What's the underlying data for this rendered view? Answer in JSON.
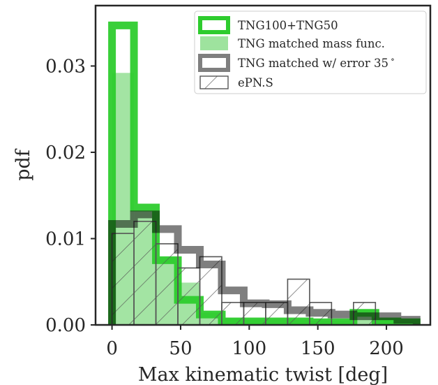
{
  "chart_data": {
    "type": "histogram",
    "xlabel": "Max kinematic twist [deg]",
    "ylabel": "pdf",
    "xlim": [
      -12,
      232
    ],
    "ylim": [
      0,
      0.037
    ],
    "xticks": [
      0,
      50,
      100,
      150,
      200
    ],
    "yticks": [
      0.0,
      0.01,
      0.02,
      0.03
    ],
    "xtick_labels": [
      "0",
      "50",
      "100",
      "150",
      "200"
    ],
    "ytick_labels": [
      "0.00",
      "0.01",
      "0.02",
      "0.03"
    ],
    "grid": false,
    "legend_position": "top-right",
    "series": [
      {
        "name": "TNG100+TNG50",
        "style": "step",
        "color": "#2ecc2e",
        "bin_edges": [
          0,
          16,
          32,
          48,
          64,
          80,
          96,
          112,
          128,
          144,
          160,
          176,
          192,
          208,
          222
        ],
        "values": [
          0.0347,
          0.0136,
          0.0075,
          0.0029,
          0.0012,
          0.0004,
          0.0004,
          0.0004,
          0.0004,
          0.0003,
          0.0003,
          0.0014,
          0.0004,
          0.0003
        ]
      },
      {
        "name": "TNG matched mass func.",
        "style": "filled",
        "color": "#9ee39e",
        "bin_edges": [
          0,
          16,
          32,
          48,
          64,
          80,
          96,
          112,
          128,
          144,
          160,
          176,
          192,
          208,
          222
        ],
        "values": [
          0.0292,
          0.0132,
          0.0078,
          0.0049,
          0.0014,
          0.0008,
          0.0006,
          0.0006,
          0.0006,
          0.0005,
          0.0005,
          0.0018,
          0.0006,
          0.0004
        ]
      },
      {
        "name": "TNG matched w/ error 35$^\\circ$",
        "legend_label": "TNG matched w/ error 35",
        "legend_sup": "∘",
        "style": "step",
        "color": "#7f7f7f",
        "bin_edges": [
          0,
          16,
          32,
          48,
          64,
          80,
          96,
          112,
          128,
          144,
          160,
          176,
          192,
          208,
          222
        ],
        "values": [
          0.0117,
          0.0128,
          0.0111,
          0.0087,
          0.007,
          0.004,
          0.0025,
          0.0024,
          0.0017,
          0.0014,
          0.0012,
          0.001,
          0.001,
          0.0006
        ]
      },
      {
        "name": "ePN.S",
        "style": "hatched",
        "color": "#555555",
        "bin_edges": [
          0,
          16,
          32,
          48,
          64,
          80,
          96,
          112,
          128,
          144,
          160,
          176,
          192,
          208,
          222
        ],
        "values": [
          0.0106,
          0.012,
          0.0094,
          0.0066,
          0.0079,
          0.0026,
          0.0026,
          0.0026,
          0.0053,
          0.0026,
          0.0,
          0.0026,
          0.0,
          0.0
        ]
      }
    ]
  }
}
